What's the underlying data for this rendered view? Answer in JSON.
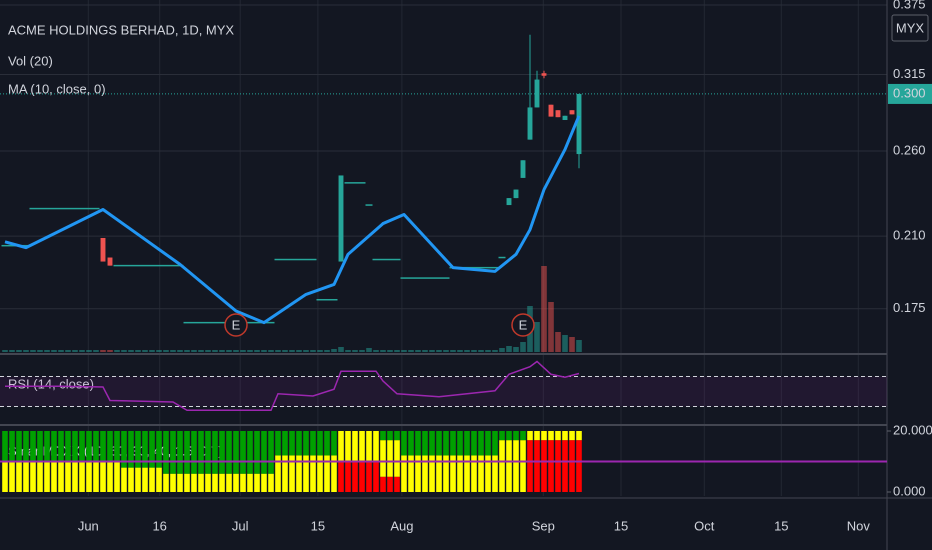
{
  "chart_data": {
    "type": "candlestick",
    "title": "ACME HOLDINGS BERHAD, 1D, MYX",
    "currency": "MYX",
    "volume_label": "Vol (20)",
    "log": true,
    "grid": true,
    "up_color": "#26a69a",
    "down_color": "#ef5350",
    "xlim": [
      0,
      126
    ],
    "xticks": [
      {
        "value": 11.9,
        "label": "Jun"
      },
      {
        "value": 22.1,
        "label": "16"
      },
      {
        "value": 33.6,
        "label": "Jul"
      },
      {
        "value": 44.7,
        "label": "15"
      },
      {
        "value": 56.7,
        "label": "Aug"
      },
      {
        "value": 76.9,
        "label": "Sep"
      },
      {
        "value": 88,
        "label": "15"
      },
      {
        "value": 99.9,
        "label": "Oct"
      },
      {
        "value": 110.9,
        "label": "15"
      },
      {
        "value": 121.9,
        "label": "Nov"
      }
    ],
    "ylim": [
      0.157,
      0.375
    ],
    "yticks": [
      0.375,
      0.315,
      {
        "value": 0.26,
        "label": "0.260"
      },
      {
        "value": 0.21,
        "label": "0.210"
      },
      0.175
    ],
    "last_price": {
      "value": 0.3,
      "label": "0.300"
    },
    "candles": [
      [
        0.205,
        0.205,
        0.205,
        0.205
      ],
      [
        0.205,
        0.205,
        0.205,
        0.205
      ],
      [
        0.205,
        0.205,
        0.205,
        0.205
      ],
      [
        0.205,
        0.205,
        0.205,
        0.205
      ],
      [
        0.225,
        0.225,
        0.225,
        0.225
      ],
      [
        0.225,
        0.225,
        0.225,
        0.225
      ],
      [
        0.225,
        0.225,
        0.225,
        0.225
      ],
      [
        0.225,
        0.225,
        0.225,
        0.225
      ],
      [
        0.225,
        0.225,
        0.225,
        0.225
      ],
      [
        0.225,
        0.225,
        0.225,
        0.225
      ],
      [
        0.225,
        0.225,
        0.225,
        0.225
      ],
      [
        0.225,
        0.225,
        0.225,
        0.225
      ],
      [
        0.225,
        0.225,
        0.225,
        0.225
      ],
      [
        0.225,
        0.225,
        0.225,
        0.225
      ],
      [
        0.209,
        0.209,
        0.197,
        0.197
      ],
      [
        0.199,
        0.199,
        0.195,
        0.195
      ],
      [
        0.195,
        0.195,
        0.195,
        0.195
      ],
      [
        0.195,
        0.195,
        0.195,
        0.195
      ],
      [
        0.195,
        0.195,
        0.195,
        0.195
      ],
      [
        0.195,
        0.195,
        0.195,
        0.195
      ],
      [
        0.195,
        0.195,
        0.195,
        0.195
      ],
      [
        0.195,
        0.195,
        0.195,
        0.195
      ],
      [
        0.195,
        0.195,
        0.195,
        0.195
      ],
      [
        0.195,
        0.195,
        0.195,
        0.195
      ],
      [
        0.195,
        0.195,
        0.195,
        0.195
      ],
      [
        0.195,
        0.195,
        0.195,
        0.195
      ],
      [
        0.169,
        0.169,
        0.169,
        0.169
      ],
      [
        0.169,
        0.169,
        0.169,
        0.169
      ],
      [
        0.169,
        0.169,
        0.169,
        0.169
      ],
      [
        0.169,
        0.169,
        0.169,
        0.169
      ],
      [
        0.169,
        0.169,
        0.169,
        0.169
      ],
      [
        0.169,
        0.169,
        0.169,
        0.169
      ],
      [
        0.169,
        0.169,
        0.169,
        0.169
      ],
      [
        0.169,
        0.169,
        0.169,
        0.169
      ],
      [
        0.169,
        0.169,
        0.169,
        0.169
      ],
      [
        0.169,
        0.169,
        0.169,
        0.169
      ],
      [
        0.169,
        0.169,
        0.169,
        0.169
      ],
      [
        0.169,
        0.169,
        0.169,
        0.169
      ],
      [
        0.169,
        0.169,
        0.169,
        0.169
      ],
      [
        0.198,
        0.198,
        0.198,
        0.198
      ],
      [
        0.198,
        0.198,
        0.198,
        0.198
      ],
      [
        0.198,
        0.198,
        0.198,
        0.198
      ],
      [
        0.198,
        0.198,
        0.198,
        0.198
      ],
      [
        0.198,
        0.198,
        0.198,
        0.198
      ],
      [
        0.198,
        0.198,
        0.198,
        0.198
      ],
      [
        0.179,
        0.179,
        0.179,
        0.179
      ],
      [
        0.179,
        0.179,
        0.179,
        0.179
      ],
      [
        0.179,
        0.179,
        0.179,
        0.179
      ],
      [
        0.197,
        0.2445,
        0.197,
        0.2445
      ],
      [
        0.24,
        0.24,
        0.24,
        0.24
      ],
      [
        0.24,
        0.24,
        0.24,
        0.24
      ],
      [
        0.24,
        0.24,
        0.24,
        0.24
      ],
      [
        0.227,
        0.227,
        0.227,
        0.227
      ],
      [
        0.198,
        0.198,
        0.198,
        0.198
      ],
      [
        0.198,
        0.198,
        0.198,
        0.198
      ],
      [
        0.198,
        0.198,
        0.198,
        0.198
      ],
      [
        0.198,
        0.198,
        0.198,
        0.198
      ],
      [
        0.189,
        0.189,
        0.189,
        0.189
      ],
      [
        0.189,
        0.189,
        0.189,
        0.189
      ],
      [
        0.189,
        0.189,
        0.189,
        0.189
      ],
      [
        0.189,
        0.189,
        0.189,
        0.189
      ],
      [
        0.189,
        0.189,
        0.189,
        0.189
      ],
      [
        0.189,
        0.189,
        0.189,
        0.189
      ],
      [
        0.189,
        0.189,
        0.189,
        0.189
      ],
      [
        0.194,
        0.194,
        0.194,
        0.194
      ],
      [
        0.194,
        0.194,
        0.194,
        0.194
      ],
      [
        0.194,
        0.194,
        0.194,
        0.194
      ],
      [
        0.194,
        0.194,
        0.194,
        0.194
      ],
      [
        0.194,
        0.194,
        0.194,
        0.194
      ],
      [
        0.194,
        0.194,
        0.194,
        0.194
      ],
      [
        0.194,
        0.194,
        0.194,
        0.194
      ],
      [
        0.199,
        0.199,
        0.199,
        0.199
      ],
      [
        0.227,
        0.231,
        0.227,
        0.231
      ],
      [
        0.231,
        0.236,
        0.231,
        0.236
      ],
      [
        0.243,
        0.254,
        0.243,
        0.254
      ],
      [
        0.2675,
        0.348,
        0.2675,
        0.29
      ],
      [
        0.29,
        0.318,
        0.29,
        0.311
      ],
      [
        0.316,
        0.318,
        0.312,
        0.314
      ],
      [
        0.292,
        0.292,
        0.2834,
        0.2834
      ],
      [
        0.288,
        0.288,
        0.283,
        0.283
      ],
      [
        0.281,
        0.284,
        0.281,
        0.284
      ],
      [
        0.288,
        0.288,
        0.285,
        0.285
      ],
      [
        0.258,
        0.3,
        0.249,
        0.3
      ]
    ],
    "volume_lim": [
      0,
      100
    ],
    "volume": [
      2,
      2,
      2,
      2,
      2,
      2,
      2,
      2,
      2,
      2,
      2,
      2,
      2,
      2,
      2,
      2,
      2,
      2,
      2,
      2,
      2,
      2,
      2,
      2,
      2,
      2,
      2,
      2,
      2,
      2,
      2,
      2,
      2,
      2,
      2,
      2,
      2,
      2,
      2,
      2,
      2,
      2,
      2,
      2,
      2,
      2,
      2,
      3,
      5,
      2,
      2,
      2,
      4,
      2,
      2,
      2,
      2,
      2,
      2,
      2,
      2,
      2,
      2,
      2,
      2,
      2,
      2,
      2,
      2,
      2,
      2,
      4,
      6,
      5,
      10,
      46,
      30,
      86,
      50,
      20,
      17,
      15,
      12
    ],
    "ma": {
      "name": "MA (10, close, 0)",
      "color": "#2196f3",
      "x": [
        0,
        3,
        14,
        25,
        33,
        37,
        43,
        47,
        49,
        54,
        57,
        64,
        70,
        73,
        75,
        77,
        80,
        82
      ],
      "values": [
        0.207,
        0.204,
        0.2245,
        0.1956,
        0.174,
        0.169,
        0.1814,
        0.186,
        0.2006,
        0.2167,
        0.2217,
        0.194,
        0.1922,
        0.2006,
        0.2134,
        0.236,
        0.261,
        0.284
      ]
    },
    "events": [
      {
        "label": "E",
        "x": 33
      },
      {
        "label": "E",
        "x": 74
      }
    ],
    "rsi": {
      "name": "RSI (14, close)",
      "color": "#9c27b0",
      "ylim": [
        8,
        96
      ],
      "bands": [
        30,
        70
      ],
      "x": [
        0,
        8,
        14,
        15,
        24,
        26,
        38,
        39,
        44,
        47,
        48,
        53,
        54,
        56,
        62,
        70,
        72,
        75,
        76,
        78,
        80,
        82
      ],
      "values": [
        57,
        57,
        56,
        38,
        36,
        25,
        25,
        47,
        44,
        53,
        77,
        77,
        64,
        47,
        43,
        51,
        73,
        83,
        90,
        73,
        69,
        74
      ]
    },
    "smart": {
      "name": "SmartMDXX (10, 60, 30, 40, 1.5, 0.7)",
      "ylim": [
        0,
        20
      ],
      "yticks": [
        {
          "value": 20,
          "label": "20.000"
        },
        {
          "value": 0,
          "label": "0.000"
        }
      ],
      "level": 10,
      "level_color": "#9c27b0",
      "series": [
        {
          "color": "#ff0000",
          "values": [
            0,
            0,
            0,
            0,
            0,
            0,
            0,
            0,
            0,
            0,
            0,
            0,
            0,
            0,
            0,
            0,
            0,
            0,
            0,
            0,
            0,
            0,
            0,
            0,
            0,
            0,
            0,
            0,
            0,
            0,
            0,
            0,
            0,
            0,
            0,
            0,
            0,
            0,
            0,
            0,
            0,
            0,
            0,
            0,
            0,
            0,
            0,
            0,
            10,
            10,
            10,
            10,
            10,
            10,
            5,
            5,
            5,
            0,
            0,
            0,
            0,
            0,
            0,
            0,
            0,
            0,
            0,
            0,
            0,
            0,
            0,
            0,
            0,
            0,
            0,
            17,
            17,
            17,
            17,
            17,
            17,
            17,
            17
          ]
        },
        {
          "color": "#ffff00",
          "values": [
            10,
            10,
            10,
            10,
            10,
            10,
            10,
            10,
            10,
            10,
            10,
            10,
            10,
            10,
            10,
            10,
            10,
            8,
            8,
            8,
            8,
            8,
            8,
            6,
            6,
            6,
            6,
            6,
            6,
            6,
            6,
            6,
            6,
            6,
            6,
            6,
            6,
            6,
            6,
            12,
            12,
            12,
            12,
            12,
            12,
            12,
            12,
            12,
            10,
            10,
            10,
            10,
            10,
            10,
            12,
            12,
            12,
            12,
            12,
            12,
            12,
            12,
            12,
            12,
            12,
            12,
            12,
            12,
            12,
            12,
            12,
            17,
            17,
            17,
            17,
            3,
            3,
            3,
            3,
            3,
            3,
            3,
            3
          ]
        },
        {
          "color": "#00a000",
          "values": [
            10,
            10,
            10,
            10,
            10,
            10,
            10,
            10,
            10,
            10,
            10,
            10,
            10,
            10,
            10,
            10,
            10,
            12,
            12,
            12,
            12,
            12,
            12,
            14,
            14,
            14,
            14,
            14,
            14,
            14,
            14,
            14,
            14,
            14,
            14,
            14,
            14,
            14,
            14,
            8,
            8,
            8,
            8,
            8,
            8,
            8,
            8,
            8,
            0,
            0,
            0,
            0,
            0,
            0,
            3,
            3,
            3,
            8,
            8,
            8,
            8,
            8,
            8,
            8,
            8,
            8,
            8,
            8,
            8,
            8,
            8,
            3,
            3,
            3,
            3,
            0,
            0,
            0,
            0,
            0,
            0,
            0,
            0
          ]
        }
      ]
    }
  }
}
